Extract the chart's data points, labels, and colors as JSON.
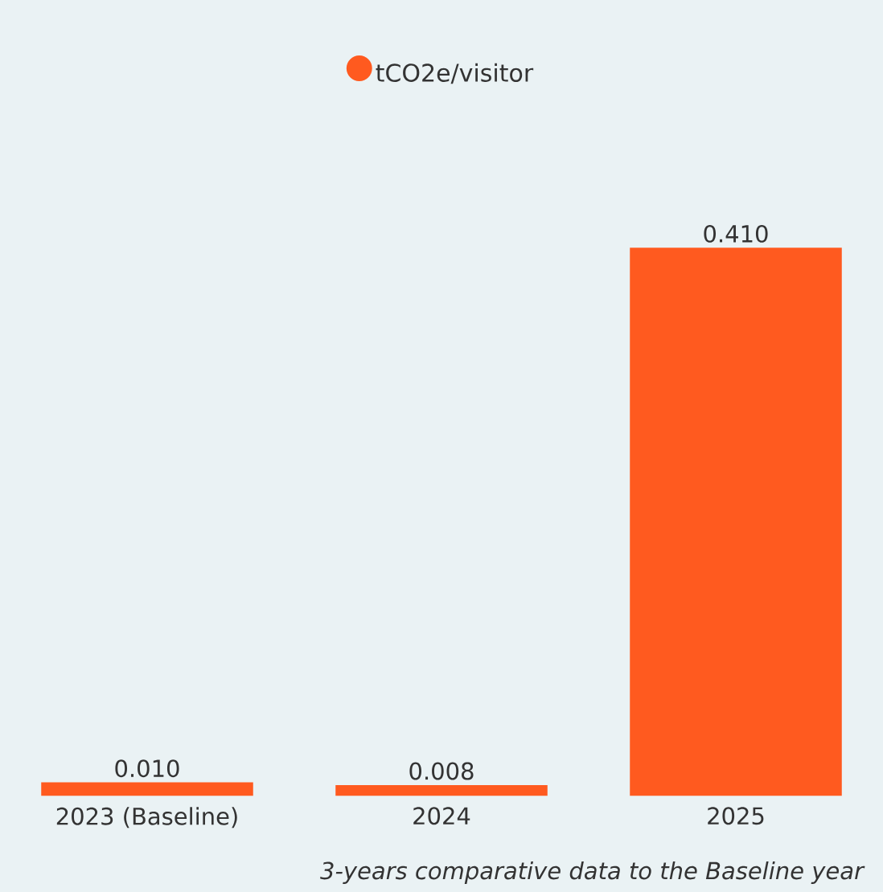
{
  "chart_data": {
    "type": "bar",
    "categories": [
      "2023 (Baseline)",
      "2024",
      "2025"
    ],
    "series": [
      {
        "name": "tCO2e/visitor",
        "color": "#ff5a1f",
        "values": [
          0.01,
          0.008,
          0.41
        ],
        "value_labels": [
          "0.010",
          "0.008",
          "0.410"
        ]
      }
    ],
    "legend": "top",
    "annotations": [
      "3-years comparative data to the Baseline year"
    ]
  }
}
